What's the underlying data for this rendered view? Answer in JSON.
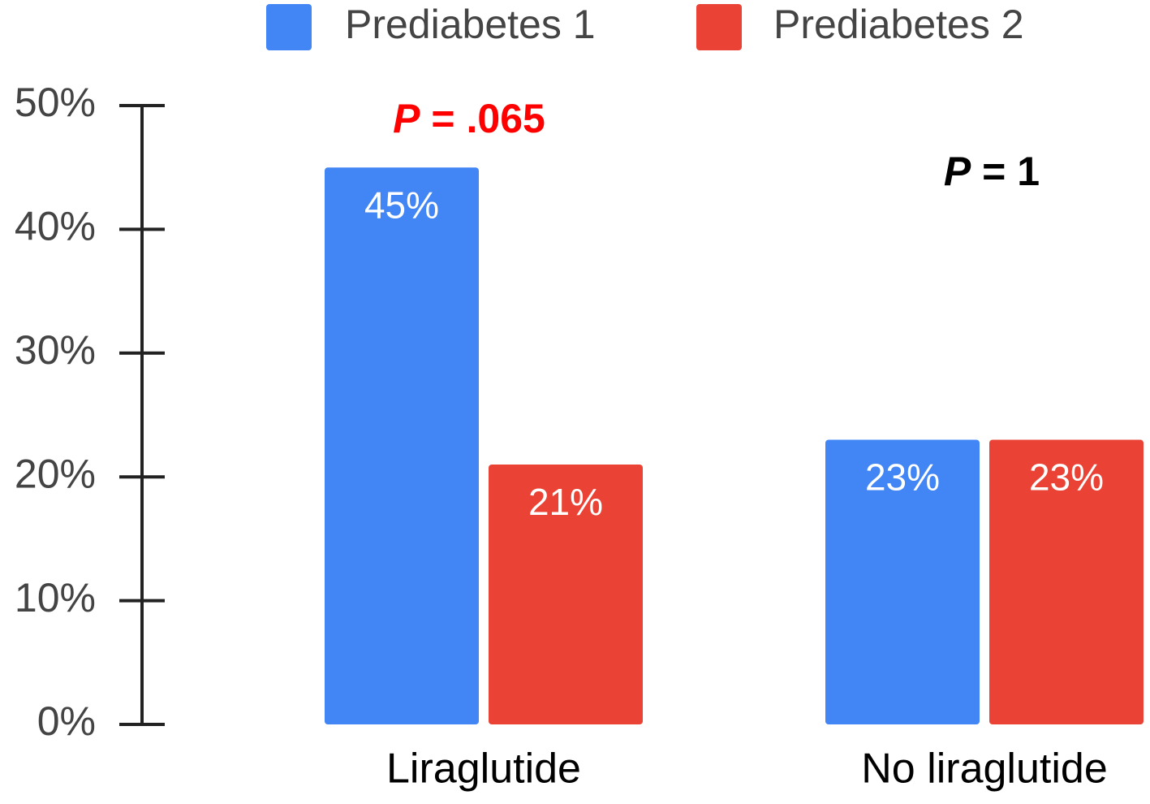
{
  "chart_data": {
    "type": "bar",
    "categories": [
      "Liraglutide",
      "No liraglutide"
    ],
    "series": [
      {
        "name": "Prediabetes 1",
        "color": "#4285f4",
        "values": [
          45,
          23
        ]
      },
      {
        "name": "Prediabetes 2",
        "color": "#ea4335",
        "values": [
          21,
          23
        ]
      }
    ],
    "data_labels": [
      [
        "45%",
        "23%"
      ],
      [
        "21%",
        "23%"
      ]
    ],
    "y_ticks": [
      0,
      10,
      20,
      30,
      40,
      50
    ],
    "y_tick_labels": [
      "0%",
      "10%",
      "20%",
      "30%",
      "40%",
      "50%"
    ],
    "ylim": [
      0,
      50
    ],
    "grid": false,
    "legend_position": "top",
    "annotations": [
      {
        "category": "Liraglutide",
        "italic": "P",
        "text": " = .065",
        "color": "#ff0000"
      },
      {
        "category": "No liraglutide",
        "italic": "P",
        "text": " = 1",
        "color": "#000000"
      }
    ],
    "data_label_color": "#ffffff",
    "axis_color": "#222222"
  }
}
